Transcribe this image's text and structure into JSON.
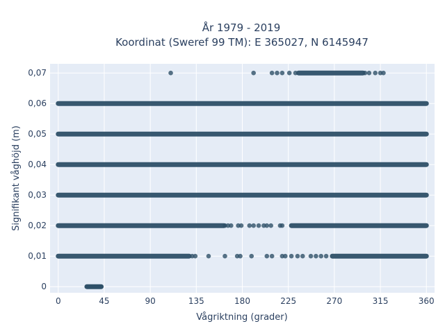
{
  "chart_data": {
    "type": "scatter",
    "title": "År 1979 - 2019",
    "subtitle": "Koordinat (Sweref 99 TM): E 365027, N 6145947",
    "xlabel": "Vågriktning (grader)",
    "ylabel": "Signifikant våghöjd (m)",
    "xlim": [
      -8,
      368
    ],
    "ylim": [
      -0.002,
      0.073
    ],
    "x_ticks": [
      0,
      45,
      90,
      135,
      180,
      225,
      270,
      315,
      360
    ],
    "y_ticks": [
      0,
      0.01,
      0.02,
      0.03,
      0.04,
      0.05,
      0.06,
      0.07
    ],
    "x_tick_labels": [
      "0",
      "45",
      "90",
      "135",
      "180",
      "225",
      "270",
      "315",
      "360"
    ],
    "y_tick_labels": [
      "0",
      "0,01",
      "0,02",
      "0,03",
      "0,04",
      "0,05",
      "0,06",
      "0,07"
    ],
    "grid": true,
    "marker_color": "#2e5068",
    "plot_background": "#e5ecf6",
    "series": [
      {
        "values_by_height": [
          {
            "y": 0,
            "x_ranges": [
              [
                28,
                42
              ]
            ],
            "x": [
              28,
              30,
              32,
              34,
              36,
              38,
              40,
              42
            ]
          },
          {
            "y": 0.01,
            "x_ranges": [
              [
                0,
                128
              ],
              [
                268,
                360
              ]
            ],
            "x": [
              131,
              134,
              147,
              163,
              175,
              178,
              189,
              204,
              209,
              219,
              222,
              228,
              234,
              239,
              247,
              252,
              257,
              262
            ]
          },
          {
            "y": 0.02,
            "x_ranges": [
              [
                0,
                162
              ],
              [
                228,
                360
              ]
            ],
            "x": [
              163,
              166,
              169,
              176,
              179,
              187,
              191,
              196,
              201,
              204,
              208,
              217,
              219
            ]
          },
          {
            "y": 0.03,
            "x_ranges": [
              [
                0,
                360
              ]
            ],
            "x": []
          },
          {
            "y": 0.04,
            "x_ranges": [
              [
                0,
                360
              ]
            ],
            "x": []
          },
          {
            "y": 0.05,
            "x_ranges": [
              [
                0,
                360
              ]
            ],
            "x": []
          },
          {
            "y": 0.06,
            "x_ranges": [
              [
                0,
                360
              ]
            ],
            "x": []
          },
          {
            "y": 0.07,
            "x_ranges": [
              [
                235,
                298
              ]
            ],
            "x": [
              110,
              191,
              209,
              214,
              219,
              226,
              232,
              300,
              304,
              310,
              315,
              318
            ]
          }
        ]
      }
    ]
  }
}
